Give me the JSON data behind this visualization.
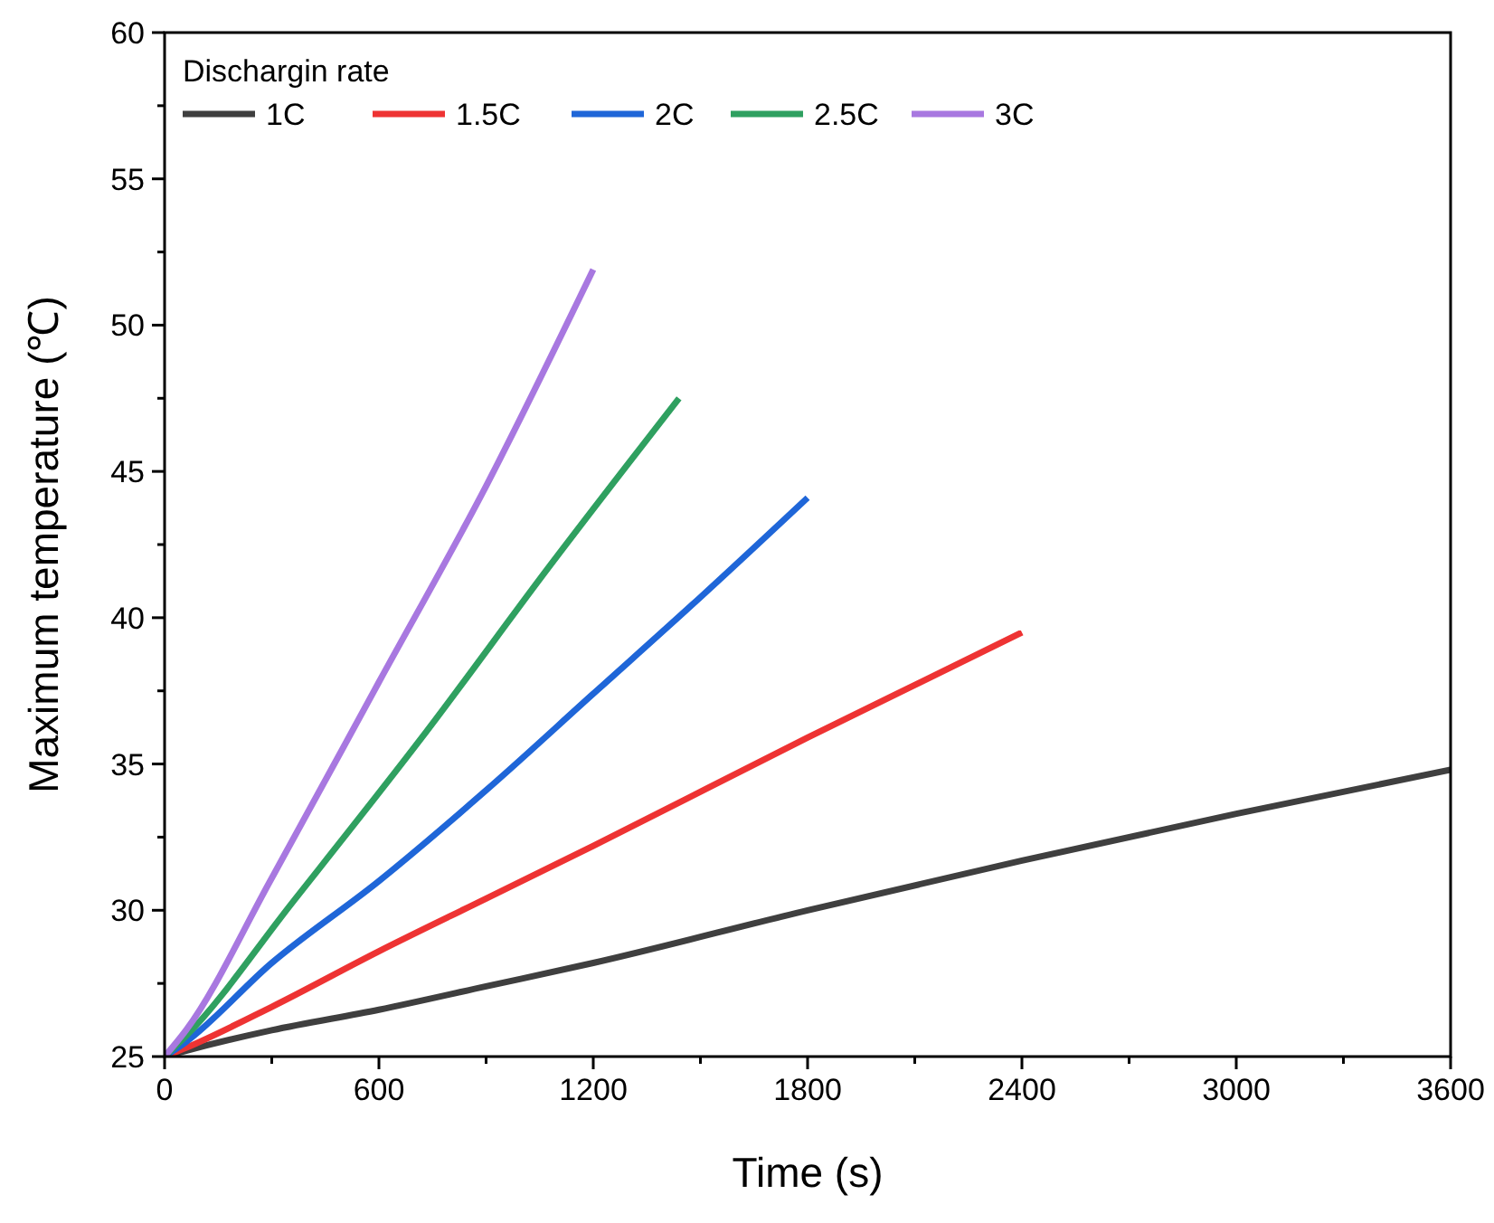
{
  "chart_data": {
    "type": "line",
    "xlabel": "Time (s)",
    "ylabel": "Maximum temperature (℃)",
    "legend_title": "Dischargin rate",
    "legend": "top left",
    "grid": false,
    "line_style": "solid",
    "xlim": [
      0,
      3600
    ],
    "xticks": [
      0,
      600,
      1200,
      1800,
      2400,
      3000,
      3600
    ],
    "ylim": [
      25,
      60
    ],
    "yticks": [
      25,
      30,
      35,
      40,
      45,
      50,
      55,
      60
    ],
    "series": [
      {
        "name": "1C",
        "color": "#3f3f3f",
        "x": [
          0,
          60,
          300,
          600,
          900,
          1200,
          1800,
          2400,
          3000,
          3600
        ],
        "values": [
          25,
          25.2,
          25.9,
          26.6,
          27.4,
          28.2,
          30.0,
          31.7,
          33.3,
          34.8
        ]
      },
      {
        "name": "1.5C",
        "color": "#ee3333",
        "x": [
          0,
          60,
          300,
          600,
          900,
          1200,
          1800,
          2400
        ],
        "values": [
          25,
          25.3,
          26.7,
          28.6,
          30.4,
          32.2,
          35.9,
          39.5
        ]
      },
      {
        "name": "2C",
        "color": "#1f66d8",
        "x": [
          0,
          60,
          300,
          600,
          900,
          1200,
          1500,
          1800
        ],
        "values": [
          25,
          25.5,
          28.2,
          31.0,
          34.1,
          37.4,
          40.7,
          44.1
        ]
      },
      {
        "name": "2.5C",
        "color": "#2fa060",
        "x": [
          0,
          60,
          360,
          720,
          1080,
          1440
        ],
        "values": [
          25,
          25.7,
          30.3,
          35.9,
          41.8,
          47.5
        ]
      },
      {
        "name": "3C",
        "color": "#a878e0",
        "x": [
          0,
          60,
          300,
          600,
          900,
          1200
        ],
        "values": [
          25,
          25.9,
          31.1,
          37.8,
          44.5,
          51.9
        ]
      }
    ]
  }
}
